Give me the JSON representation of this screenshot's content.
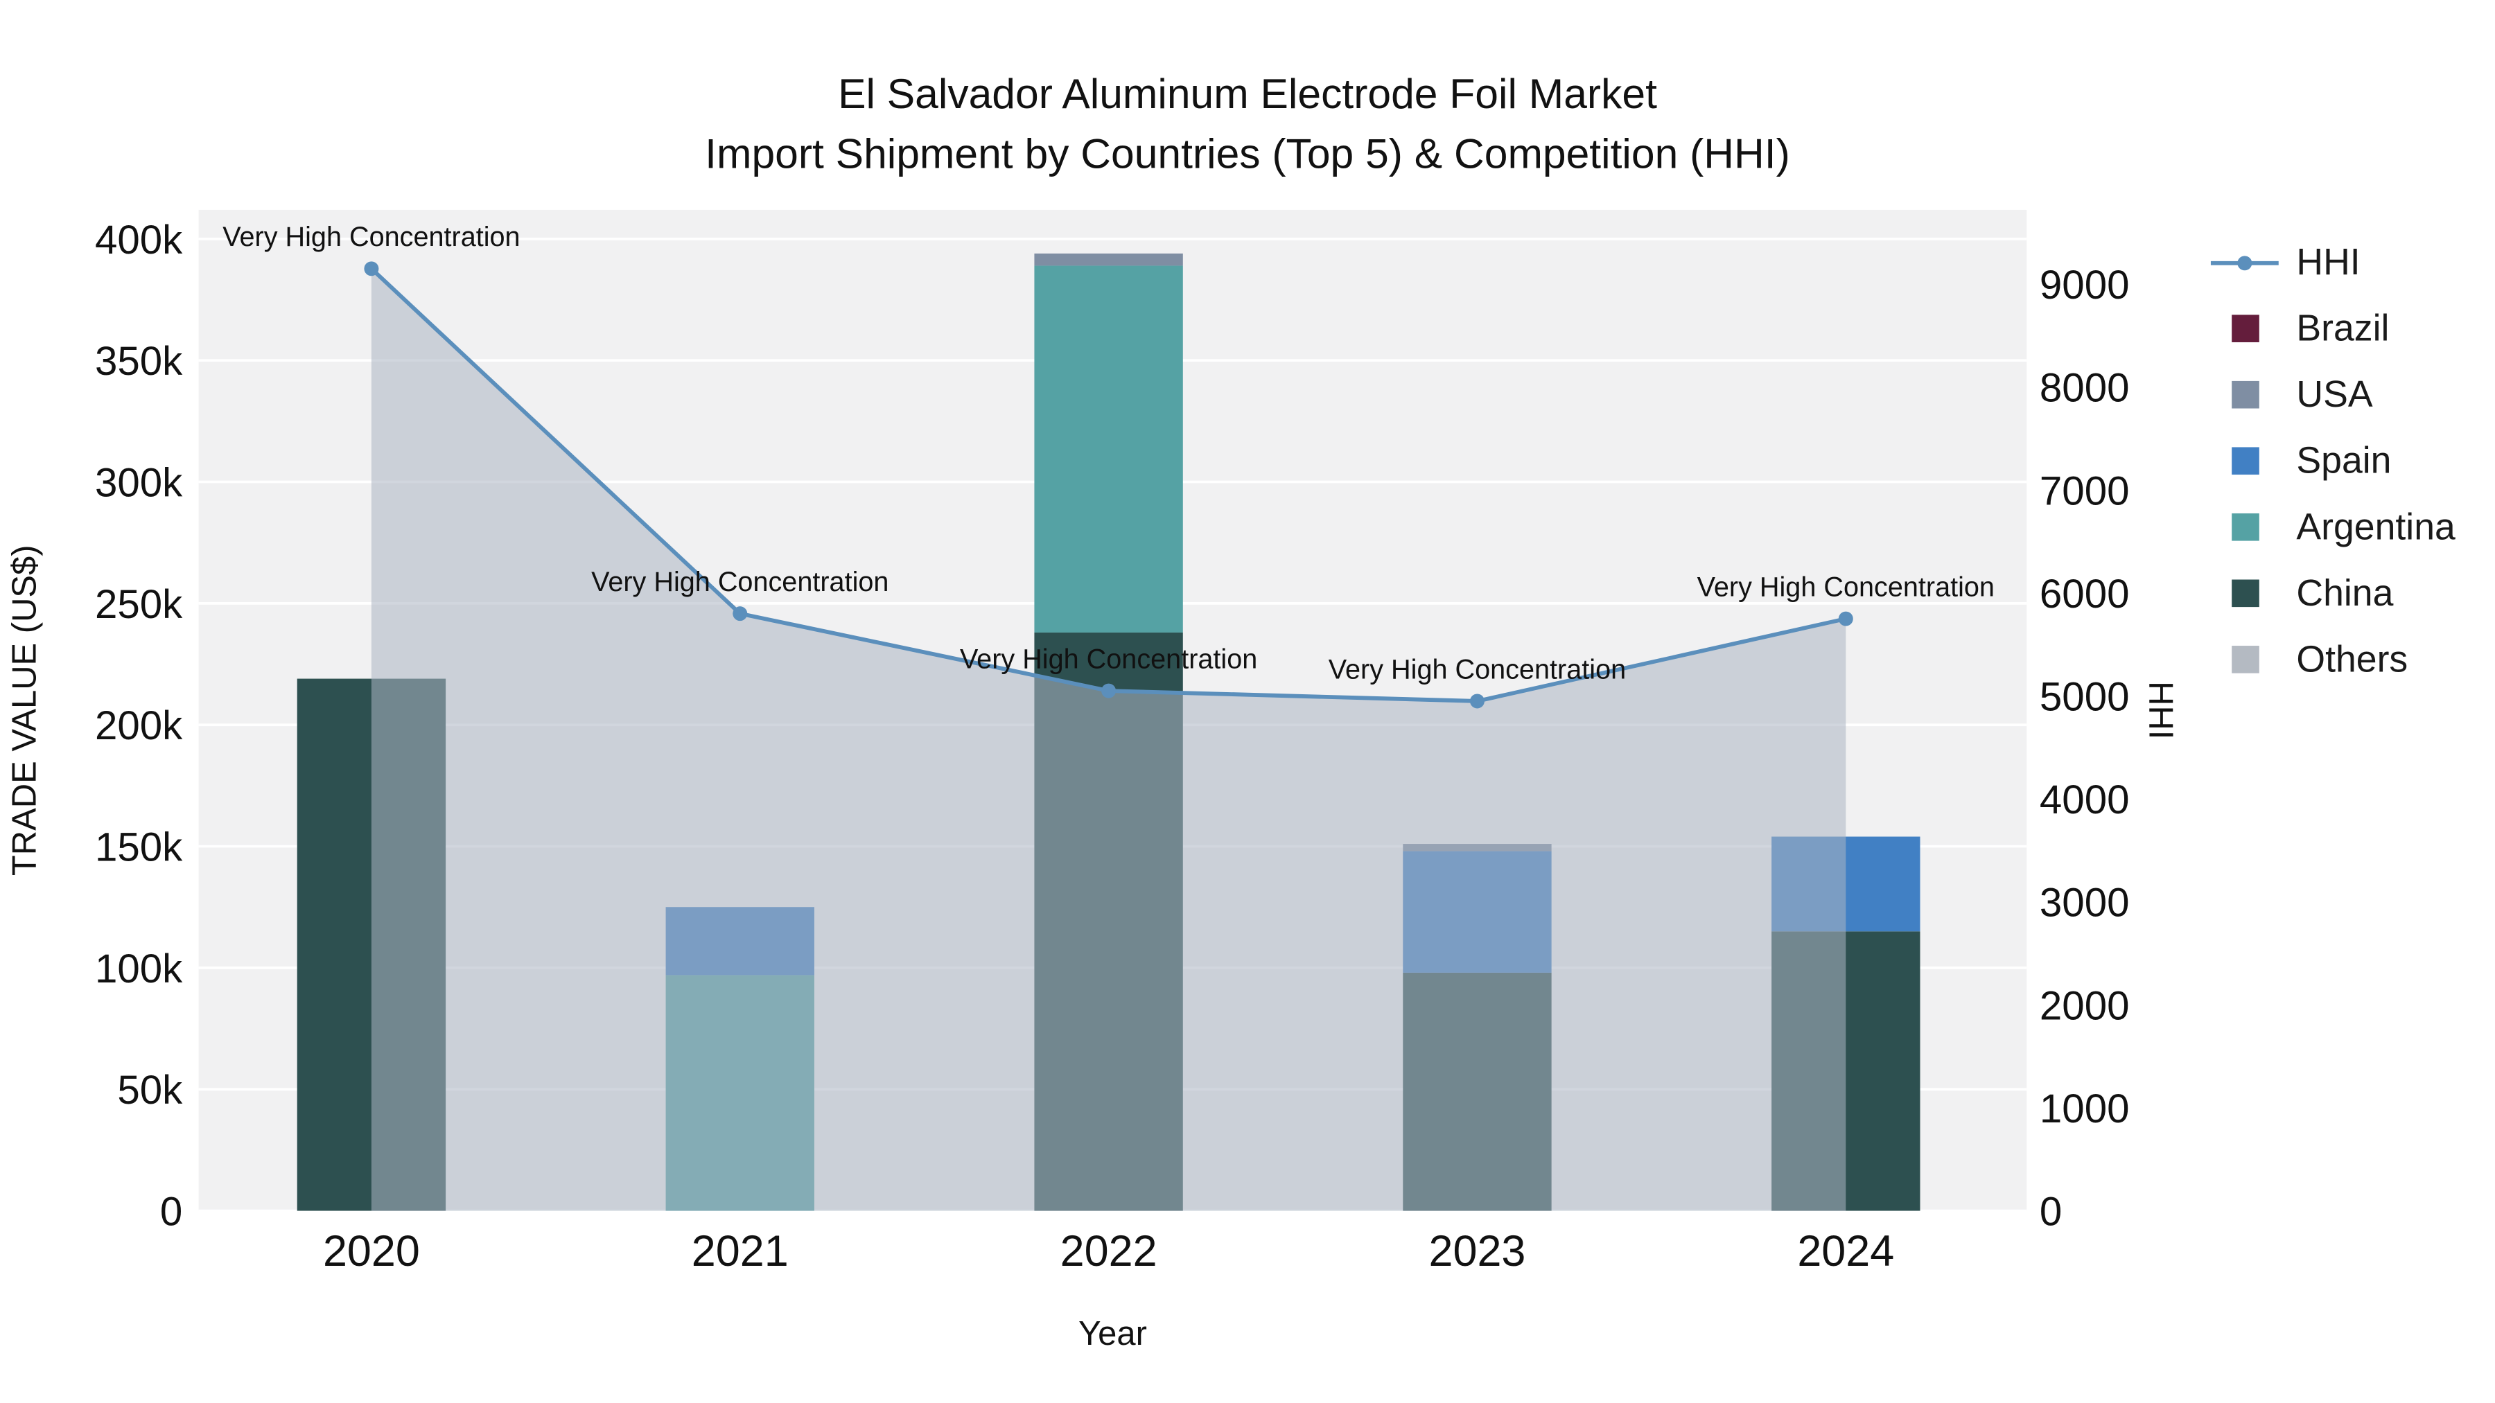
{
  "title": {
    "line1": "El Salvador Aluminum Electrode Foil Market",
    "line2": "Import Shipment by Countries (Top 5) & Competition (HHI)"
  },
  "axes": {
    "x_title": "Year",
    "y_left_title": "TRADE VALUE (US$)",
    "y_right_title": "HHI",
    "x_ticks": [
      "2020",
      "2021",
      "2022",
      "2023",
      "2024"
    ],
    "y_left_ticks": [
      "0",
      "50k",
      "100k",
      "150k",
      "200k",
      "250k",
      "300k",
      "350k",
      "400k"
    ],
    "y_left_tick_step": 50000,
    "y_right_ticks": [
      "0",
      "1000",
      "2000",
      "3000",
      "4000",
      "5000",
      "6000",
      "7000",
      "8000",
      "9000"
    ],
    "y_right_tick_step": 1000
  },
  "colors": {
    "page_bg": "#ffffff",
    "plot_bg": "#f1f1f2",
    "grid": "#ffffff",
    "text": "#111111",
    "hhi_line": "#5b8fbc",
    "hhi_area": "rgba(172,180,194,0.55)"
  },
  "legend": {
    "items": [
      {
        "label": "HHI",
        "swatch": "line-marker",
        "color": "#5b8fbc"
      },
      {
        "label": "Brazil",
        "swatch": "square",
        "color": "#641d3c"
      },
      {
        "label": "USA",
        "swatch": "square",
        "color": "#7f8ea3"
      },
      {
        "label": "Spain",
        "swatch": "square",
        "color": "#4180c4"
      },
      {
        "label": "Argentina",
        "swatch": "square",
        "color": "#55a2a4"
      },
      {
        "label": "China",
        "swatch": "square",
        "color": "#2d5050"
      },
      {
        "label": "Others",
        "swatch": "square",
        "color": "#b4bac2"
      }
    ]
  },
  "chart_data": [
    {
      "type": "bar",
      "stacked": true,
      "categories": [
        "2020",
        "2021",
        "2022",
        "2023",
        "2024"
      ],
      "stack_order": [
        "China",
        "Argentina",
        "Spain",
        "USA",
        "Brazil",
        "Others"
      ],
      "series": [
        {
          "name": "Brazil",
          "color": "#641d3c",
          "values": [
            0,
            0,
            0,
            0,
            0
          ]
        },
        {
          "name": "USA",
          "color": "#7f8ea3",
          "values": [
            0,
            0,
            5000,
            3000,
            0
          ]
        },
        {
          "name": "Spain",
          "color": "#4180c4",
          "values": [
            0,
            28000,
            0,
            50000,
            39000
          ]
        },
        {
          "name": "Argentina",
          "color": "#55a2a4",
          "values": [
            0,
            97000,
            151000,
            0,
            0
          ]
        },
        {
          "name": "China",
          "color": "#2d5050",
          "values": [
            219000,
            0,
            238000,
            98000,
            115000
          ]
        },
        {
          "name": "Others",
          "color": "#b4bac2",
          "values": [
            0,
            0,
            0,
            0,
            0
          ]
        }
      ],
      "xlabel": "Year",
      "ylabel": "TRADE VALUE (US$)",
      "ylim": [
        0,
        412000
      ]
    },
    {
      "type": "line",
      "name": "HHI",
      "x": [
        "2020",
        "2021",
        "2022",
        "2023",
        "2024"
      ],
      "values": [
        9150,
        5800,
        5050,
        4950,
        5750
      ],
      "yaxis": "right",
      "ylabel": "HHI",
      "ylim": [
        0,
        9718
      ],
      "color": "#5b8fbc",
      "area_fill": "rgba(172,180,194,0.55)",
      "annotations": [
        "Very High Concentration",
        "Very High Concentration",
        "Very High Concentration",
        "Very High Concentration",
        "Very High Concentration"
      ]
    }
  ]
}
